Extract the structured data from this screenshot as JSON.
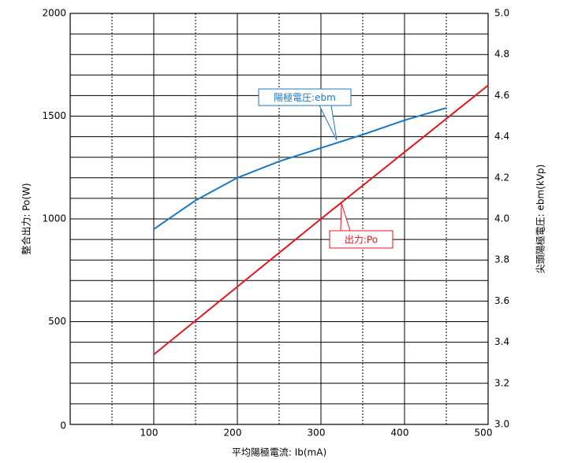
{
  "chart_data": {
    "type": "line",
    "xlabel": "平均陽極電流: Ib(mA)",
    "ylabel": "整合出力: Po(W)",
    "y2label": "尖頭陽極電圧: ebm(kVp)",
    "xlim": [
      0,
      500
    ],
    "xticks": [
      100,
      200,
      300,
      400,
      500
    ],
    "ylim": [
      0,
      2000
    ],
    "yticks": [
      0,
      500,
      1000,
      1500,
      2000
    ],
    "y2lim": [
      3.0,
      5.0
    ],
    "y2ticks": [
      {
        "value": 3.0,
        "label": "3.0"
      },
      3.2,
      3.4,
      3.6,
      3.8,
      {
        "value": 4.0,
        "label": "4.0"
      },
      4.2,
      4.4,
      4.6,
      4.8,
      {
        "value": 5.0,
        "label": "5.0"
      }
    ],
    "grid": true,
    "series": [
      {
        "name": "出力:Po",
        "color": "#e8141c",
        "x": [
          100,
          200,
          300,
          400,
          500
        ],
        "values": [
          340,
          670,
          1000,
          1325,
          1650
        ]
      },
      {
        "name": "陽極電圧:ebm",
        "color": "#1a78c2",
        "axis": "y2",
        "x": [
          100,
          150,
          200,
          250,
          300,
          350,
          400,
          450
        ],
        "values": [
          3.95,
          4.09,
          4.2,
          4.28,
          4.345,
          4.41,
          4.48,
          4.54
        ]
      }
    ]
  }
}
